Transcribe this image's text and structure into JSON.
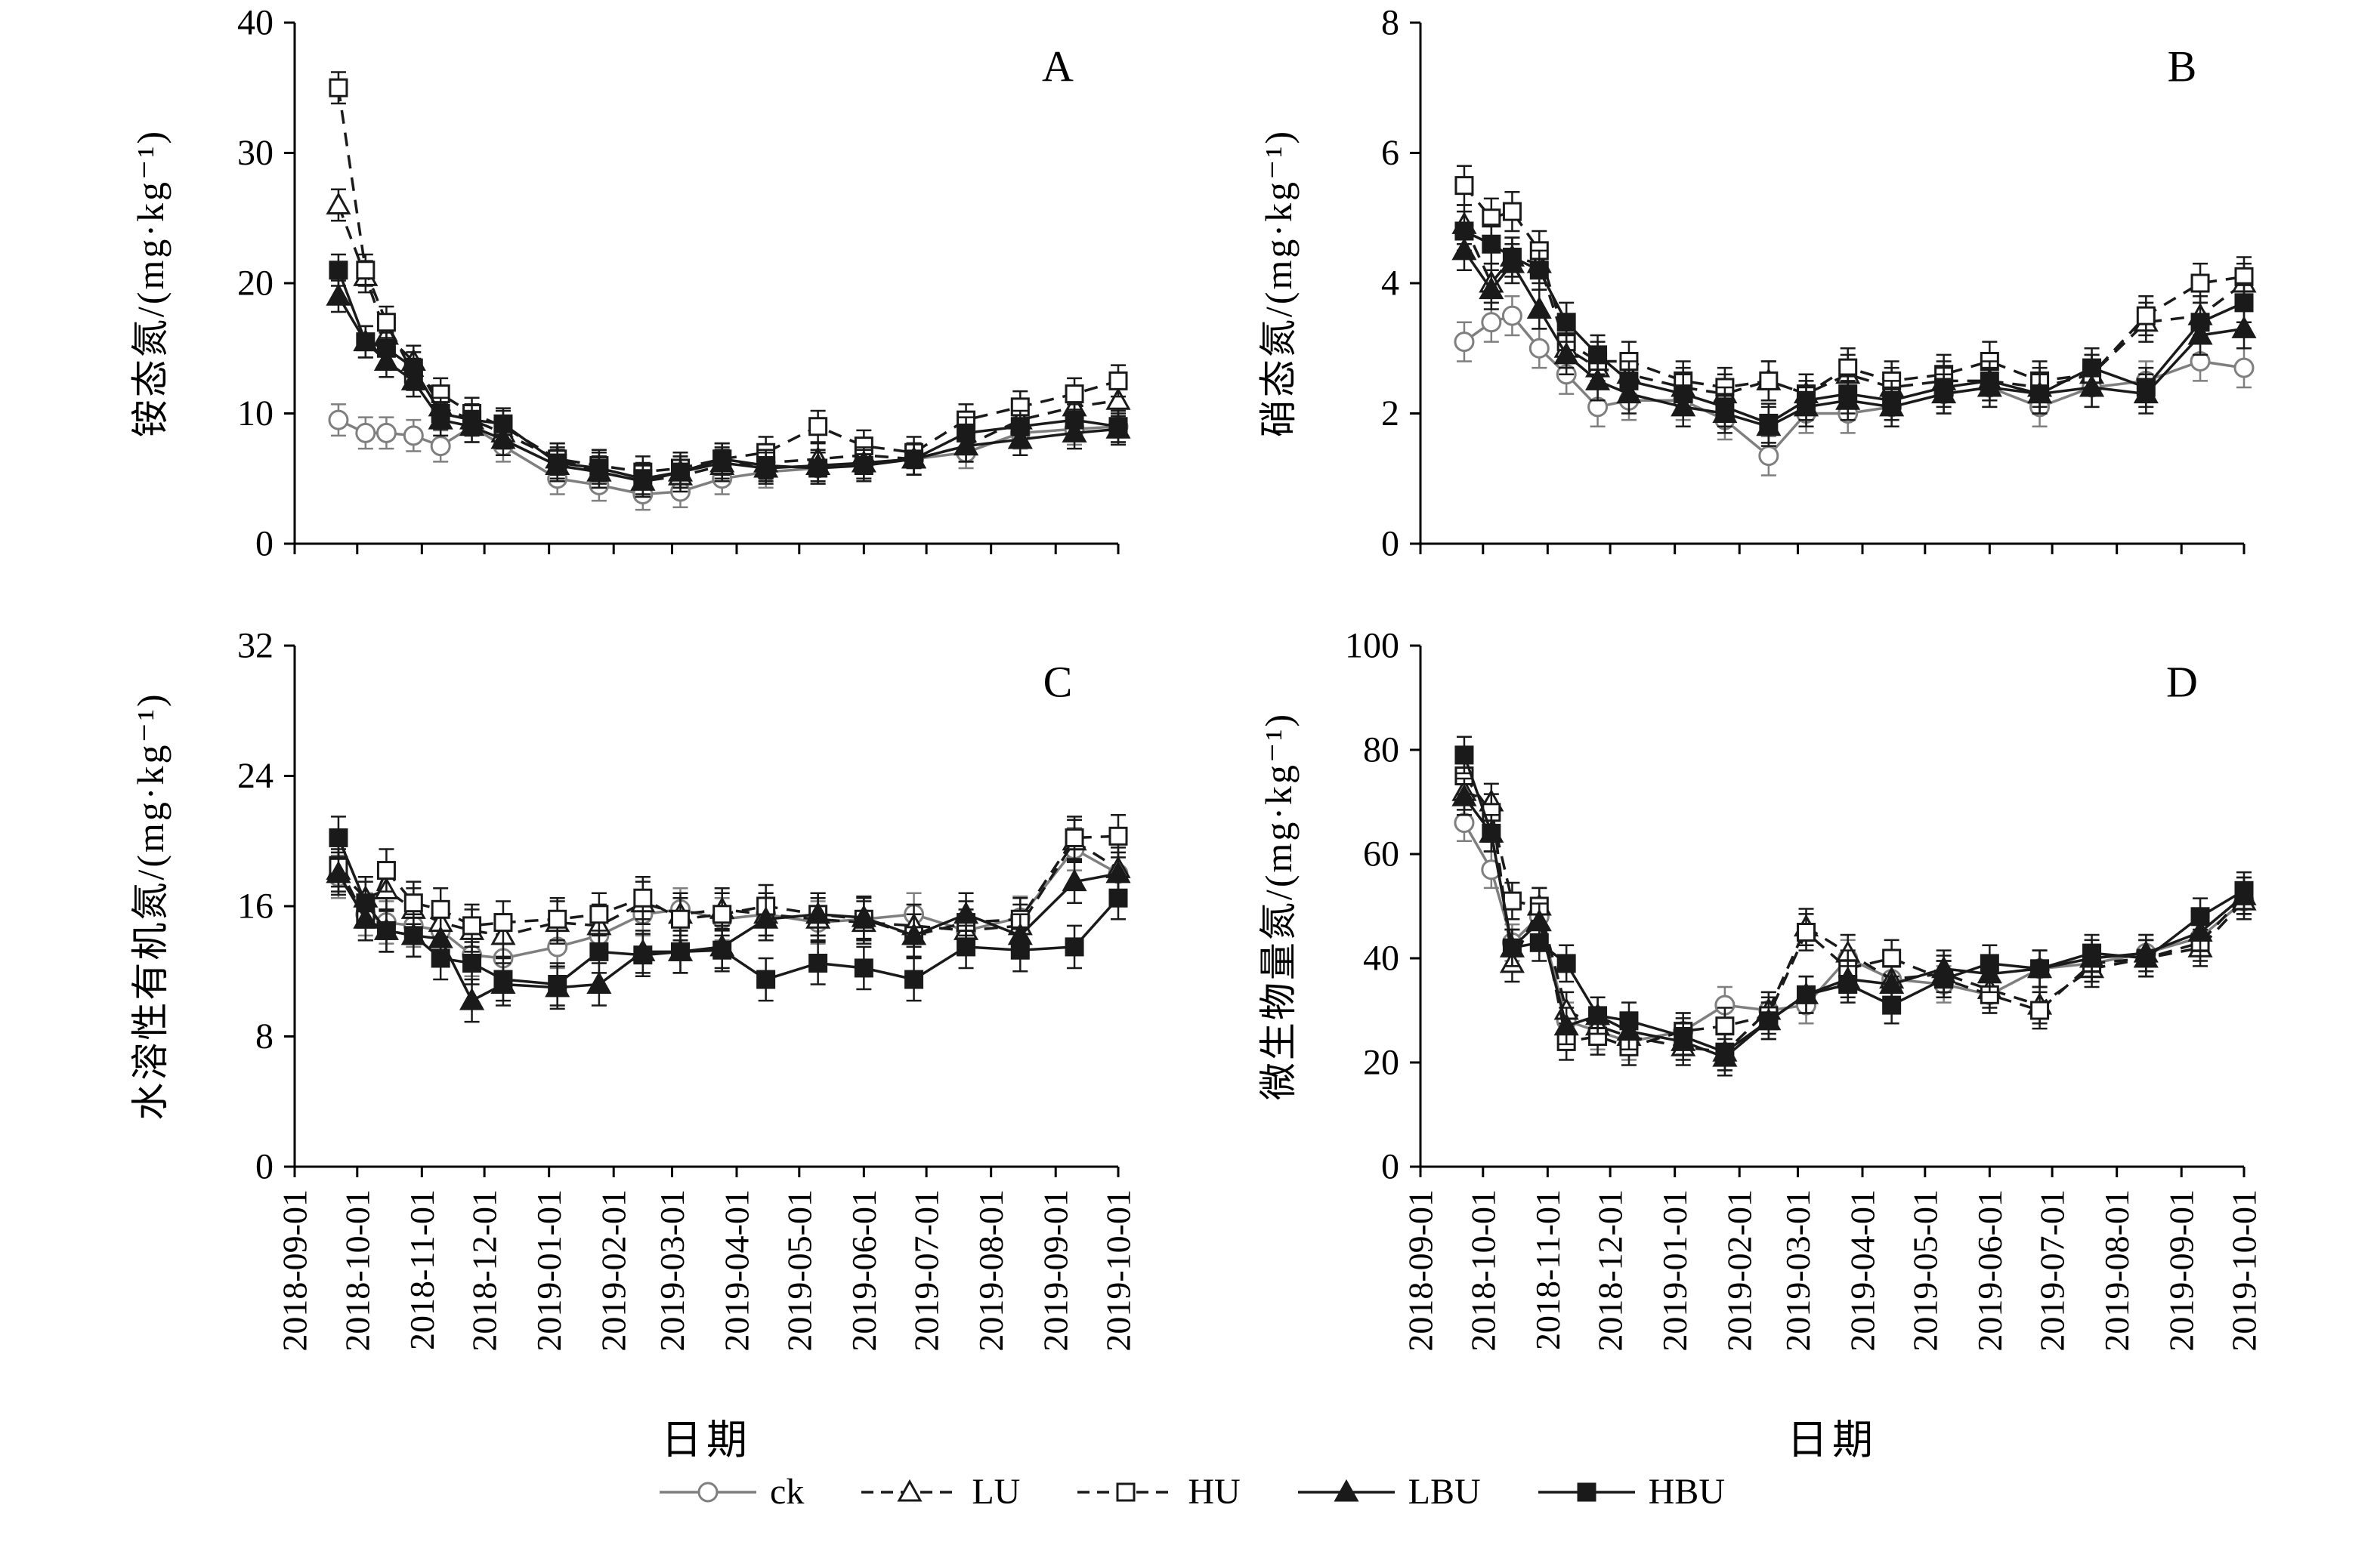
{
  "figure": {
    "background": "#ffffff",
    "axis_color": "#000000",
    "x_axis_title": "日期",
    "x_range": [
      "2018-09-01",
      "2019-10-01"
    ],
    "x_tick_labels": [
      "2018-09-01",
      "2018-10-01",
      "2018-11-01",
      "2018-12-01",
      "2019-01-01",
      "2019-02-01",
      "2019-03-01",
      "2019-04-01",
      "2019-05-01",
      "2019-06-01",
      "2019-07-01",
      "2019-08-01",
      "2019-09-01",
      "2019-10-01"
    ],
    "sample_dates": [
      "2018-09-22",
      "2018-10-05",
      "2018-10-15",
      "2018-10-28",
      "2018-11-10",
      "2018-11-25",
      "2018-12-10",
      "2019-01-05",
      "2019-01-25",
      "2019-02-15",
      "2019-03-05",
      "2019-03-25",
      "2019-04-15",
      "2019-05-10",
      "2019-06-01",
      "2019-06-25",
      "2019-07-20",
      "2019-08-15",
      "2019-09-10",
      "2019-10-01"
    ],
    "legend_position": "bottom",
    "series_meta": [
      {
        "key": "ck",
        "label": "ck",
        "marker": "circle",
        "fill": "open",
        "line": "solid",
        "color": "#7f7f7f"
      },
      {
        "key": "LU",
        "label": "LU",
        "marker": "triangle",
        "fill": "open",
        "line": "dashed",
        "color": "#1a1a1a"
      },
      {
        "key": "HU",
        "label": "HU",
        "marker": "square",
        "fill": "open",
        "line": "dashed",
        "color": "#1a1a1a"
      },
      {
        "key": "LBU",
        "label": "LBU",
        "marker": "triangle",
        "fill": "solid",
        "line": "solid",
        "color": "#1a1a1a"
      },
      {
        "key": "HBU",
        "label": "HBU",
        "marker": "square",
        "fill": "solid",
        "line": "solid",
        "color": "#1a1a1a"
      }
    ]
  },
  "chart_data": [
    {
      "type": "line",
      "letter": "A",
      "ylabel": "铵态氮/(mg·kg⁻¹)",
      "ylim": [
        0,
        40
      ],
      "yticks": [
        0,
        10,
        20,
        30,
        40
      ],
      "err": 1.2,
      "series": [
        {
          "name": "ck",
          "values": [
            9.5,
            8.5,
            8.5,
            8.3,
            7.5,
            9.0,
            7.5,
            5.0,
            4.5,
            3.8,
            4.0,
            5.0,
            5.5,
            5.8,
            6.2,
            6.5,
            7.0,
            8.5,
            8.8,
            9.0
          ]
        },
        {
          "name": "LU",
          "values": [
            26.0,
            20.5,
            16.0,
            14.0,
            10.5,
            9.5,
            8.5,
            6.5,
            5.5,
            4.8,
            5.2,
            6.0,
            6.2,
            6.5,
            6.8,
            6.5,
            7.5,
            9.5,
            10.5,
            11.0
          ]
        },
        {
          "name": "HU",
          "values": [
            35.0,
            21.0,
            17.0,
            13.0,
            11.5,
            10.0,
            9.0,
            6.5,
            6.0,
            5.5,
            5.8,
            6.5,
            7.0,
            9.0,
            7.5,
            7.0,
            9.5,
            10.5,
            11.5,
            12.5
          ]
        },
        {
          "name": "LBU",
          "values": [
            19.0,
            15.5,
            14.0,
            12.5,
            9.5,
            9.0,
            8.0,
            6.0,
            5.5,
            4.8,
            5.5,
            6.2,
            5.8,
            6.0,
            6.2,
            6.5,
            7.5,
            8.0,
            8.5,
            8.8
          ]
        },
        {
          "name": "HBU",
          "values": [
            21.0,
            15.5,
            15.0,
            13.5,
            10.0,
            9.5,
            9.2,
            6.2,
            5.8,
            5.0,
            5.5,
            6.5,
            6.0,
            5.8,
            6.0,
            6.5,
            8.5,
            9.0,
            9.5,
            9.0
          ]
        }
      ]
    },
    {
      "type": "line",
      "letter": "B",
      "ylabel": "硝态氮/(mg·kg⁻¹)",
      "ylim": [
        0,
        8
      ],
      "yticks": [
        0,
        2,
        4,
        6,
        8
      ],
      "err": 0.3,
      "series": [
        {
          "name": "ck",
          "values": [
            3.1,
            3.4,
            3.5,
            3.0,
            2.6,
            2.1,
            2.2,
            2.2,
            1.9,
            1.35,
            2.0,
            2.0,
            2.1,
            2.3,
            2.4,
            2.1,
            2.4,
            2.5,
            2.8,
            2.7
          ]
        },
        {
          "name": "LU",
          "values": [
            4.9,
            4.0,
            4.4,
            4.3,
            3.0,
            2.7,
            2.6,
            2.4,
            2.3,
            2.5,
            2.3,
            2.6,
            2.4,
            2.5,
            2.5,
            2.4,
            2.6,
            3.4,
            3.5,
            4.0
          ]
        },
        {
          "name": "HU",
          "values": [
            5.5,
            5.0,
            5.1,
            4.5,
            3.1,
            2.8,
            2.8,
            2.5,
            2.4,
            2.5,
            2.3,
            2.7,
            2.5,
            2.6,
            2.8,
            2.5,
            2.6,
            3.5,
            4.0,
            4.1
          ]
        },
        {
          "name": "LBU",
          "values": [
            4.5,
            3.9,
            4.3,
            3.6,
            2.9,
            2.5,
            2.3,
            2.1,
            2.0,
            1.8,
            2.1,
            2.2,
            2.1,
            2.3,
            2.4,
            2.3,
            2.4,
            2.3,
            3.2,
            3.3
          ]
        },
        {
          "name": "HBU",
          "values": [
            4.8,
            4.6,
            4.4,
            4.2,
            3.4,
            2.9,
            2.5,
            2.3,
            2.1,
            1.85,
            2.2,
            2.3,
            2.2,
            2.4,
            2.5,
            2.3,
            2.7,
            2.4,
            3.4,
            3.7
          ]
        }
      ]
    },
    {
      "type": "line",
      "letter": "C",
      "ylabel": "水溶性有机氮/(mg·kg⁻¹)",
      "ylim": [
        0,
        32
      ],
      "yticks": [
        0,
        8,
        16,
        24,
        32
      ],
      "err": 1.3,
      "series": [
        {
          "name": "ck",
          "values": [
            17.8,
            15.5,
            15.0,
            14.8,
            14.5,
            13.0,
            12.8,
            13.5,
            14.2,
            15.5,
            15.8,
            15.2,
            15.5,
            15.0,
            15.2,
            15.5,
            14.5,
            15.3,
            19.5,
            18.0
          ]
        },
        {
          "name": "LU",
          "values": [
            18.2,
            16.5,
            17.0,
            15.8,
            15.0,
            14.5,
            14.2,
            15.0,
            14.8,
            16.2,
            15.5,
            15.8,
            15.5,
            15.2,
            15.0,
            14.8,
            14.5,
            14.8,
            20.0,
            18.3
          ]
        },
        {
          "name": "HU",
          "values": [
            18.5,
            15.2,
            18.2,
            16.2,
            15.8,
            14.8,
            15.0,
            15.2,
            15.5,
            16.5,
            15.2,
            15.5,
            16.0,
            15.5,
            15.2,
            14.2,
            15.0,
            15.2,
            20.2,
            20.3
          ]
        },
        {
          "name": "LBU",
          "values": [
            18.0,
            15.2,
            14.5,
            14.2,
            14.0,
            10.2,
            11.2,
            11.0,
            11.2,
            13.2,
            13.2,
            13.5,
            15.2,
            15.5,
            15.3,
            14.2,
            15.5,
            14.2,
            17.5,
            18.0
          ]
        },
        {
          "name": "HBU",
          "values": [
            20.2,
            16.2,
            14.5,
            14.2,
            12.8,
            12.5,
            11.5,
            11.2,
            13.2,
            13.0,
            13.2,
            13.3,
            11.5,
            12.5,
            12.2,
            11.5,
            13.5,
            13.3,
            13.5,
            16.5
          ]
        }
      ]
    },
    {
      "type": "line",
      "letter": "D",
      "ylabel": "微生物量氮/(mg·kg⁻¹)",
      "ylim": [
        0,
        100
      ],
      "yticks": [
        0,
        20,
        40,
        60,
        80,
        100
      ],
      "err": 3.5,
      "series": [
        {
          "name": "ck",
          "values": [
            66,
            57,
            43,
            48,
            28,
            26,
            24,
            26,
            31,
            30,
            31,
            40,
            36,
            35,
            33,
            38,
            39,
            41,
            44,
            51
          ]
        },
        {
          "name": "LU",
          "values": [
            72,
            70,
            39,
            50,
            30,
            27,
            25,
            23,
            22,
            30,
            46,
            41,
            36,
            37,
            34,
            31,
            38,
            40,
            42,
            51
          ]
        },
        {
          "name": "HU",
          "values": [
            75,
            68,
            51,
            50,
            24,
            25,
            23,
            26,
            27,
            29,
            45,
            38,
            40,
            36,
            33,
            30,
            39,
            40,
            43,
            52
          ]
        },
        {
          "name": "LBU",
          "values": [
            71,
            64,
            42,
            47,
            27,
            29,
            26,
            24,
            21,
            28,
            33,
            36,
            35,
            38,
            37,
            38,
            40,
            41,
            45,
            52
          ]
        },
        {
          "name": "HBU",
          "values": [
            79,
            64,
            42,
            43,
            39,
            29,
            28,
            25,
            22,
            28,
            33,
            35,
            31,
            36,
            39,
            38,
            41,
            40,
            48,
            53
          ]
        }
      ]
    }
  ]
}
